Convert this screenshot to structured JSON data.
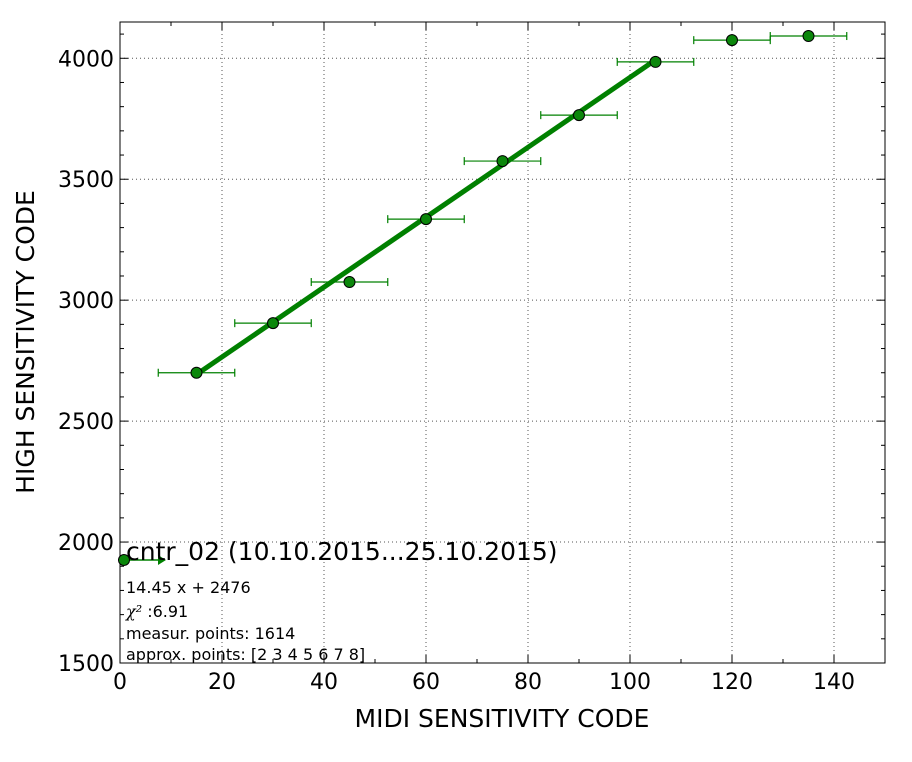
{
  "chart_data": {
    "type": "scatter",
    "xlabel": "MIDI SENSITIVITY CODE",
    "ylabel": "HIGH SENSITIVITY CODE",
    "xlim": [
      0,
      150
    ],
    "ylim": [
      1500,
      4150
    ],
    "xticks": [
      0,
      20,
      40,
      60,
      80,
      100,
      120,
      140
    ],
    "yticks": [
      1500,
      2000,
      2500,
      3000,
      3500,
      4000
    ],
    "grid": true,
    "colors": {
      "series": "#008000",
      "marker": "#0b870b",
      "fit": "#008000"
    },
    "points": [
      {
        "x": 0,
        "y": 1925,
        "xerr": 0
      },
      {
        "x": 15,
        "y": 2700,
        "xerr": 7.5
      },
      {
        "x": 30,
        "y": 2905,
        "xerr": 7.5
      },
      {
        "x": 45,
        "y": 3075,
        "xerr": 7.5
      },
      {
        "x": 60,
        "y": 3335,
        "xerr": 7.5
      },
      {
        "x": 75,
        "y": 3575,
        "xerr": 7.5
      },
      {
        "x": 90,
        "y": 3765,
        "xerr": 7.5
      },
      {
        "x": 105,
        "y": 3985,
        "xerr": 7.5
      },
      {
        "x": 120,
        "y": 4075,
        "xerr": 7.5
      },
      {
        "x": 135,
        "y": 4092,
        "xerr": 7.5
      }
    ],
    "fit": {
      "slope": 14.45,
      "intercept": 2476,
      "x_range": [
        15,
        105
      ]
    },
    "legend": {
      "title": "cntr_02 (10.10.2015...25.10.2015)",
      "equation": "14.45 x + 2476",
      "chi_symbol": "χ²",
      "chi_value": " :6.91",
      "measured": "measur. points: 1614",
      "approx": "approx. points: [2 3 4 5 6 7 8]"
    }
  }
}
